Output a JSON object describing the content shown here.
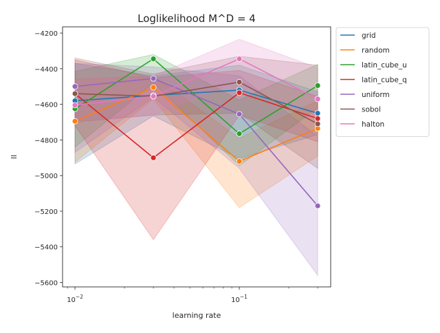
{
  "chart_data": {
    "type": "line",
    "title": "Loglikelihood M^D = 4",
    "xlabel": "learning rate",
    "ylabel": "ll",
    "xscale": "log",
    "x": [
      0.01,
      0.03,
      0.1,
      0.3
    ],
    "xlim": [
      0.0084,
      0.36
    ],
    "ylim": [
      -5625,
      -4165
    ],
    "x_ticks": [
      0.01,
      0.1
    ],
    "x_tick_labels": [
      {
        "base": "10",
        "exp": "−2"
      },
      {
        "base": "10",
        "exp": "−1"
      }
    ],
    "y_ticks": [
      -5600,
      -5400,
      -5200,
      -5000,
      -4800,
      -4600,
      -4400,
      -4200
    ],
    "y_tick_labels": [
      "−5600",
      "−5400",
      "−5200",
      "−5000",
      "−4800",
      "−4600",
      "−4400",
      "−4200"
    ],
    "grid": false,
    "legend_position": "outside-right",
    "series": [
      {
        "name": "grid",
        "color": "#1f77b4",
        "values": [
          -4580,
          -4550,
          -4520,
          -4650
        ],
        "lower": [
          -4935,
          -4665,
          -4905,
          -4770
        ],
        "upper": [
          -4370,
          -4440,
          -4380,
          -4530
        ]
      },
      {
        "name": "random",
        "color": "#ff7f0e",
        "values": [
          -4695,
          -4505,
          -4920,
          -4735
        ],
        "lower": [
          -4925,
          -4570,
          -5180,
          -4890
        ],
        "upper": [
          -4460,
          -4440,
          -4790,
          -4580
        ]
      },
      {
        "name": "latin_cube_u",
        "color": "#2ca02c",
        "values": [
          -4625,
          -4345,
          -4765,
          -4495
        ],
        "lower": [
          -4840,
          -4480,
          -4945,
          -4620
        ],
        "upper": [
          -4415,
          -4320,
          -4575,
          -4375
        ]
      },
      {
        "name": "latin_cube_q",
        "color": "#d62728",
        "values": [
          -4540,
          -4900,
          -4535,
          -4680
        ],
        "lower": [
          -4720,
          -5360,
          -4660,
          -4810
        ],
        "upper": [
          -4350,
          -4450,
          -4410,
          -4555
        ]
      },
      {
        "name": "uniform",
        "color": "#9467bd",
        "values": [
          -4500,
          -4455,
          -4655,
          -5170
        ],
        "lower": [
          -4870,
          -4560,
          -4960,
          -5560
        ],
        "upper": [
          -4370,
          -4390,
          -4440,
          -4780
        ]
      },
      {
        "name": "sobol",
        "color": "#8c564b",
        "values": [
          -4540,
          -4555,
          -4475,
          -4710
        ],
        "lower": [
          -4700,
          -4660,
          -4650,
          -4960
        ],
        "upper": [
          -4340,
          -4430,
          -4330,
          -4380
        ]
      },
      {
        "name": "halton",
        "color": "#e377c2",
        "values": [
          -4605,
          -4555,
          -4345,
          -4570
        ],
        "lower": [
          -4700,
          -4660,
          -4470,
          -4700
        ],
        "upper": [
          -4460,
          -4440,
          -4235,
          -4395
        ]
      }
    ]
  }
}
